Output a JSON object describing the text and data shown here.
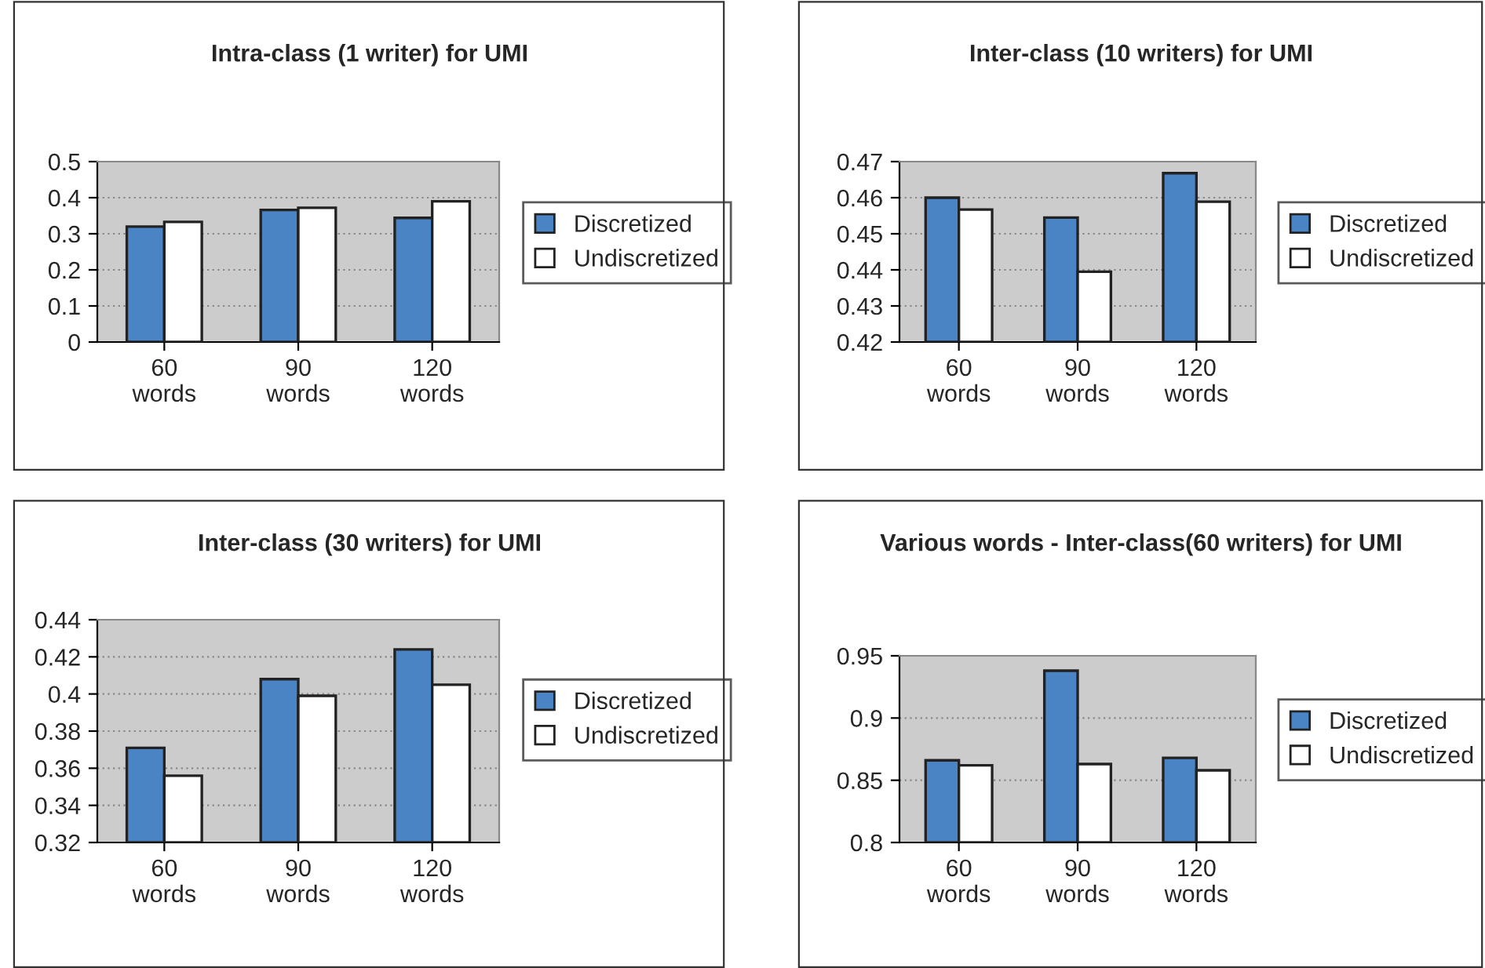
{
  "chart_data": [
    {
      "type": "bar",
      "title": "Intra-class (1 writer) for UMI",
      "categories": [
        "60 words",
        "90 words",
        "120 words"
      ],
      "series": [
        {
          "name": "Discretized",
          "color": "#4a84c4",
          "values": [
            0.32,
            0.366,
            0.344
          ]
        },
        {
          "name": "Undiscretized",
          "color": "#ffffff",
          "values": [
            0.333,
            0.372,
            0.39
          ]
        }
      ],
      "ylim": [
        0,
        0.5
      ],
      "yticks": [
        0,
        0.1,
        0.2,
        0.3,
        0.4,
        0.5
      ],
      "grid": "y",
      "legend": "right"
    },
    {
      "type": "bar",
      "title": "Inter-class (10 writers) for UMI",
      "categories": [
        "60 words",
        "90 words",
        "120 words"
      ],
      "series": [
        {
          "name": "Discretized",
          "color": "#4a84c4",
          "values": [
            0.46,
            0.4545,
            0.4668
          ]
        },
        {
          "name": "Undiscretized",
          "color": "#ffffff",
          "values": [
            0.4567,
            0.4395,
            0.4589
          ]
        }
      ],
      "ylim": [
        0.42,
        0.47
      ],
      "yticks": [
        0.42,
        0.43,
        0.44,
        0.45,
        0.46,
        0.47
      ],
      "grid": "y",
      "legend": "right"
    },
    {
      "type": "bar",
      "title": "Inter-class (30 writers) for UMI",
      "categories": [
        "60 words",
        "90 words",
        "120 words"
      ],
      "series": [
        {
          "name": "Discretized",
          "color": "#4a84c4",
          "values": [
            0.371,
            0.408,
            0.424
          ]
        },
        {
          "name": "Undiscretized",
          "color": "#ffffff",
          "values": [
            0.356,
            0.399,
            0.405
          ]
        }
      ],
      "ylim": [
        0.32,
        0.44
      ],
      "yticks": [
        0.32,
        0.34,
        0.36,
        0.38,
        0.4,
        0.42,
        0.44
      ],
      "grid": "y",
      "legend": "right"
    },
    {
      "type": "bar",
      "title": "Various words - Inter-class(60 writers) for UMI",
      "categories": [
        "60 words",
        "90 words",
        "120 words"
      ],
      "series": [
        {
          "name": "Discretized",
          "color": "#4a84c4",
          "values": [
            0.866,
            0.938,
            0.868
          ]
        },
        {
          "name": "Undiscretized",
          "color": "#ffffff",
          "values": [
            0.862,
            0.863,
            0.858
          ]
        }
      ],
      "ylim": [
        0.8,
        0.95
      ],
      "yticks": [
        0.8,
        0.85,
        0.9,
        0.95
      ],
      "grid": "y",
      "legend": "right"
    }
  ]
}
